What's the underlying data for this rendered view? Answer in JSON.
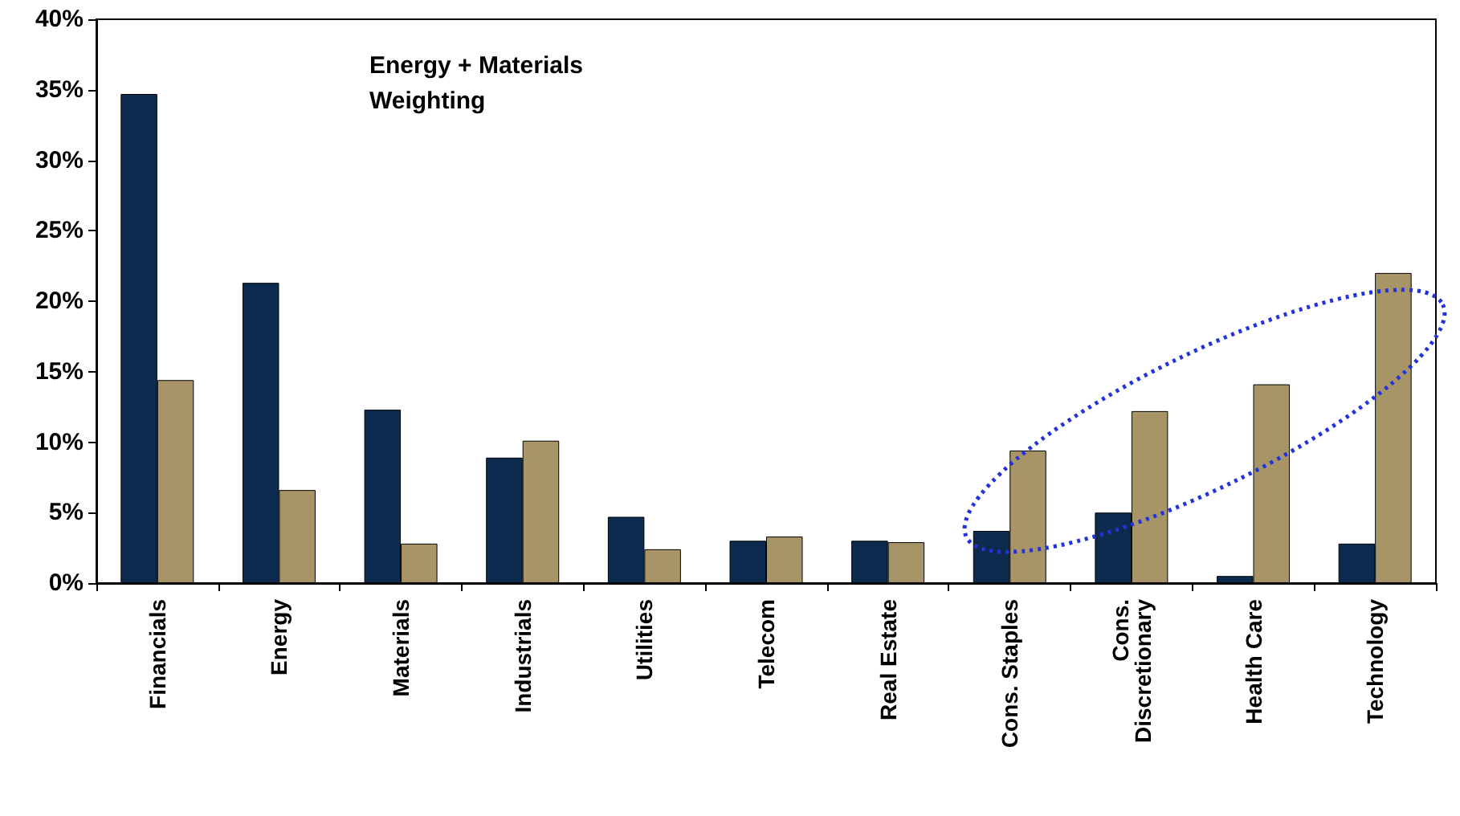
{
  "chart_data": {
    "type": "bar",
    "categories": [
      "Financials",
      "Energy",
      "Materials",
      "Industrials",
      "Utilities",
      "Telecom",
      "Real Estate",
      "Cons. Staples",
      "Cons.\nDiscretionary",
      "Health Care",
      "Technology"
    ],
    "series": [
      {
        "color": "#0d2a4f",
        "values": [
          34.7,
          21.3,
          12.3,
          8.9,
          4.7,
          3.0,
          3.0,
          3.7,
          5.0,
          0.5,
          2.8
        ]
      },
      {
        "color": "#a89567",
        "values": [
          14.4,
          6.6,
          2.8,
          10.1,
          2.4,
          3.3,
          2.9,
          9.4,
          12.2,
          14.1,
          22.0
        ]
      }
    ],
    "ylim": [
      0,
      40
    ],
    "yticks": [
      {
        "value": 0,
        "label": "0%"
      },
      {
        "value": 5,
        "label": "5%"
      },
      {
        "value": 10,
        "label": "10%"
      },
      {
        "value": 15,
        "label": "15%"
      },
      {
        "value": 20,
        "label": "20%"
      },
      {
        "value": 25,
        "label": "25%"
      },
      {
        "value": 30,
        "label": "30%"
      },
      {
        "value": 35,
        "label": "35%"
      },
      {
        "value": 40,
        "label": "40%"
      }
    ],
    "annotations": [
      "Energy + Materials\nWeighting"
    ],
    "grid": false
  }
}
